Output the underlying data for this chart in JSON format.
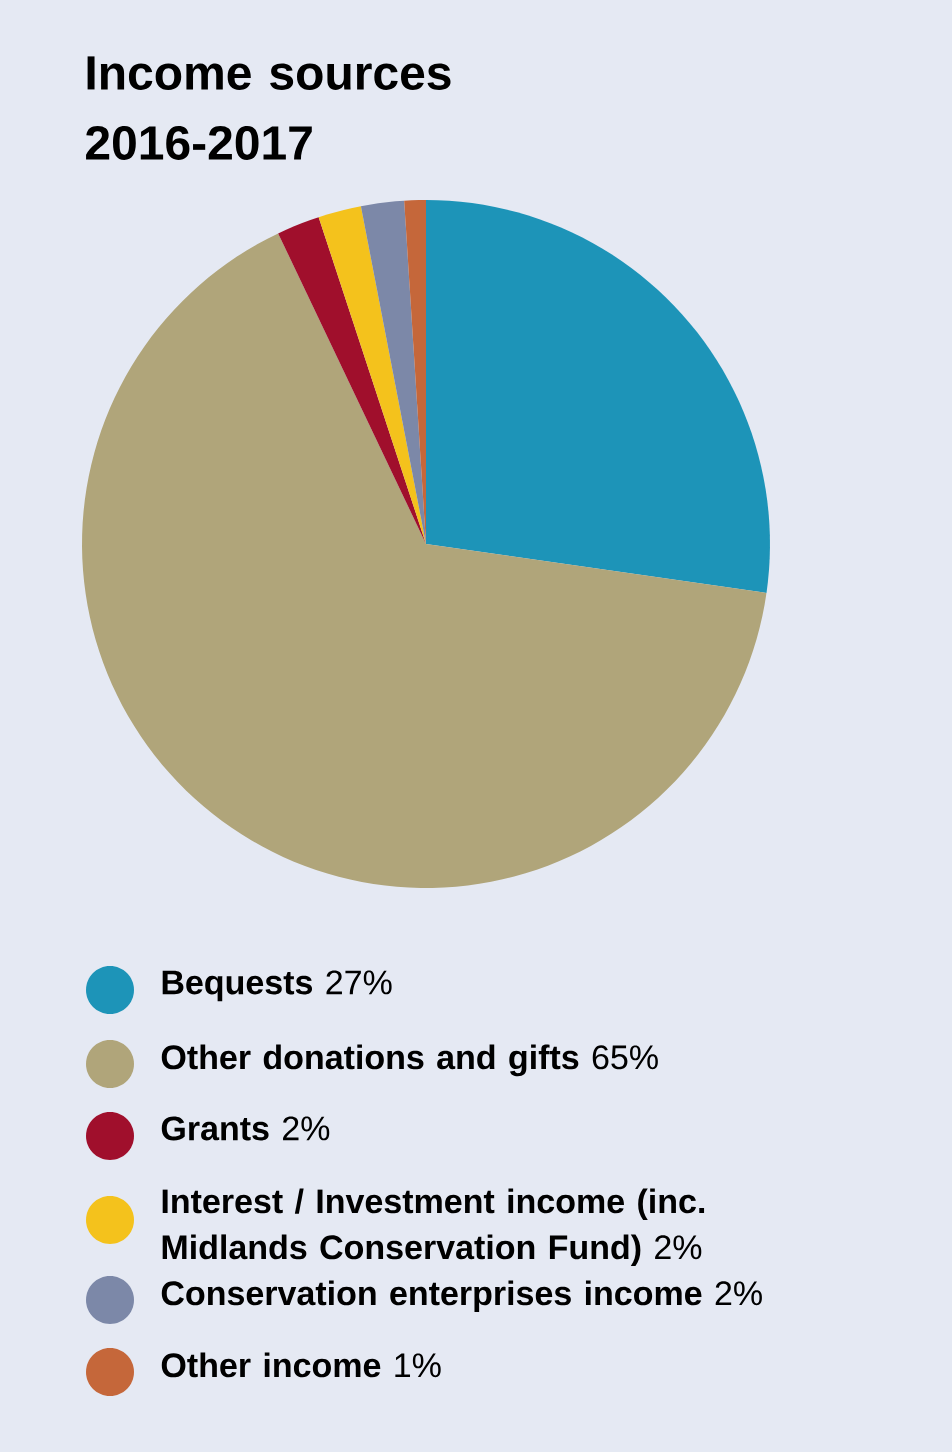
{
  "chart_data": {
    "type": "pie",
    "title": "Income sources 2016-2017",
    "categories": [
      "Bequests",
      "Other donations and gifts",
      "Grants",
      "Interest / Investment income (inc. Midlands Conservation Fund)",
      "Conservation enterprises income",
      "Other income"
    ],
    "values": [
      27,
      65,
      2,
      2,
      2,
      1
    ],
    "value_labels": [
      "27%",
      "65%",
      "2%",
      "2%",
      "2%",
      "1%"
    ],
    "colors": [
      "#1d94b8",
      "#b0a57a",
      "#a00f2c",
      "#f4c21c",
      "#7c88a8",
      "#c5673a"
    ],
    "legend": "bottom"
  }
}
